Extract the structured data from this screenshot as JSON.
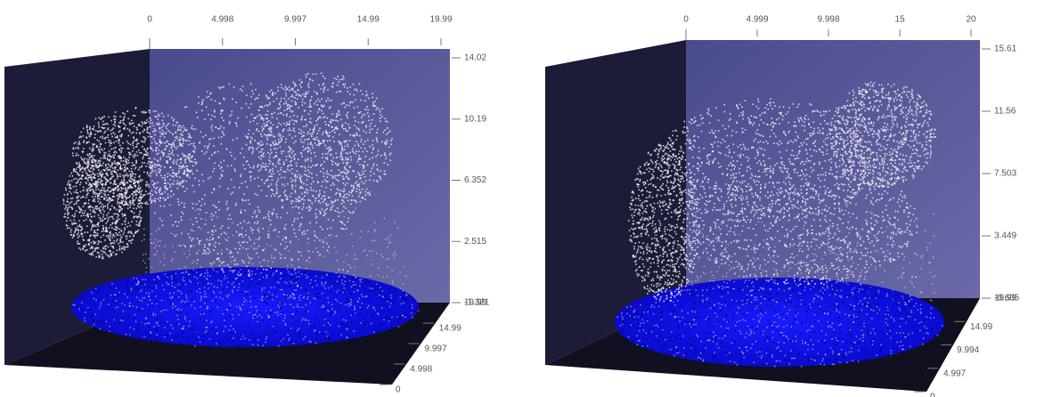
{
  "panels": [
    {
      "top_ticks": [
        "0",
        "4.998",
        "9.997",
        "14.99",
        "19.99"
      ],
      "vertical_ticks": [
        "14.02",
        "10.19",
        "6.352",
        "2.515",
        "-1.321"
      ],
      "corner_tick": "19.99",
      "depth_ticks": [
        "14.99",
        "9.997",
        "4.998",
        "0"
      ]
    },
    {
      "top_ticks": [
        "0",
        "4.999",
        "9.998",
        "15",
        "20"
      ],
      "vertical_ticks": [
        "15.61",
        "11.56",
        "7.503",
        "3.449",
        "-0.605"
      ],
      "corner_tick": "19.99",
      "depth_ticks": [
        "14.99",
        "9.994",
        "4.997",
        "0"
      ]
    }
  ]
}
